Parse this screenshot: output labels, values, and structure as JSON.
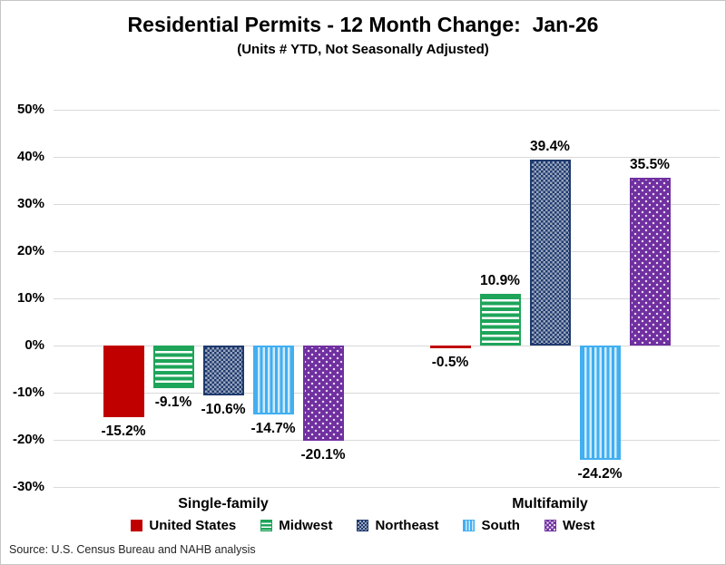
{
  "figure": {
    "title": "Residential Permits - 12 Month Change:  Jan-26",
    "subtitle": "(Units # YTD, Not Seasonally Adjusted)",
    "source": "Source: U.S. Census Bureau and NAHB analysis"
  },
  "chart_data": {
    "type": "bar",
    "title": "Residential Permits - 12 Month Change:  Jan-26",
    "subtitle": "(Units # YTD, Not Seasonally Adjusted)",
    "categories": [
      "Single-family",
      "Multifamily"
    ],
    "series": [
      {
        "name": "United States",
        "color": "#C00000",
        "pattern": "solid",
        "values": [
          -15.2,
          -0.5
        ],
        "labels": [
          "-15.2%",
          "-0.5%"
        ]
      },
      {
        "name": "Midwest",
        "color": "#1EA55A",
        "pattern": "horizontal-stripes",
        "values": [
          -9.1,
          10.9
        ],
        "labels": [
          "-9.1%",
          "10.9%"
        ]
      },
      {
        "name": "Northeast",
        "color": "#1F3A6E",
        "pattern": "checker",
        "values": [
          -10.6,
          39.4
        ],
        "labels": [
          "-10.6%",
          "39.4%"
        ]
      },
      {
        "name": "South",
        "color": "#41AFF0",
        "pattern": "vertical-stripes",
        "values": [
          -14.7,
          -24.2
        ],
        "labels": [
          "-14.7%",
          "-24.2%"
        ]
      },
      {
        "name": "West",
        "color": "#7030A0",
        "pattern": "dots",
        "values": [
          -20.1,
          35.5
        ],
        "labels": [
          "-20.1%",
          "35.5%"
        ]
      }
    ],
    "ylim": [
      -30,
      50
    ],
    "yticks": {
      "values": [
        50,
        40,
        30,
        20,
        10,
        0,
        -10,
        -20,
        -30
      ],
      "labels": [
        "50%",
        "40%",
        "30%",
        "20%",
        "10%",
        "0%",
        "-10%",
        "-20%",
        "-30%"
      ]
    },
    "grid": true,
    "gridline_color": "#D9D9D9",
    "legend_position": "bottom"
  }
}
